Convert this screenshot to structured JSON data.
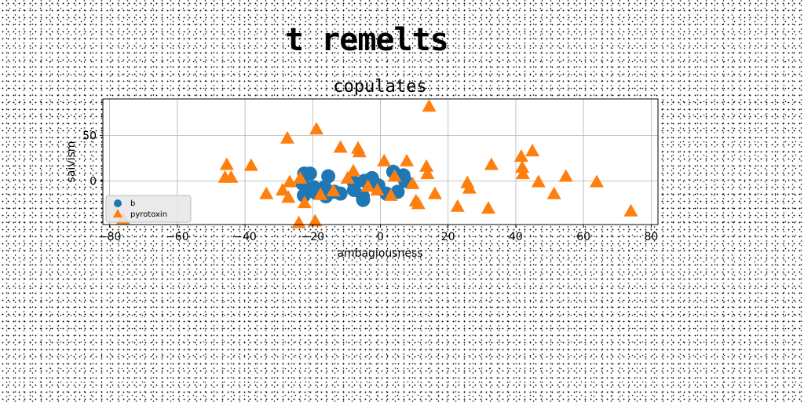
{
  "figure": {
    "suptitle": "t remelts"
  },
  "chart_data": {
    "type": "scatter",
    "title": "copulates",
    "xlabel": "ambagiousness",
    "ylabel": "saivism",
    "xlim": [
      -82,
      82
    ],
    "ylim": [
      -48,
      90
    ],
    "grid": true,
    "legend_position": "lower-left",
    "xticks": [
      -80,
      -60,
      -40,
      -20,
      0,
      20,
      40,
      60,
      80
    ],
    "yticks": [
      0,
      50
    ],
    "series": [
      {
        "name": "b",
        "marker": "circle",
        "color": "#1f77b4",
        "points": [
          [
            -22.5,
            8
          ],
          [
            -20.8,
            8
          ],
          [
            -15.4,
            5
          ],
          [
            -23,
            -3
          ],
          [
            -19.7,
            -7
          ],
          [
            -16.5,
            -7
          ],
          [
            -13.6,
            -12
          ],
          [
            -22.6,
            -16
          ],
          [
            -19.1,
            -13
          ],
          [
            -11.8,
            -14
          ],
          [
            -7.8,
            -10
          ],
          [
            -7.8,
            -2
          ],
          [
            -4.7,
            0
          ],
          [
            -2.5,
            3
          ],
          [
            -1.8,
            -4
          ],
          [
            -0.6,
            -5
          ],
          [
            3.8,
            10
          ],
          [
            6.8,
            6
          ],
          [
            7.3,
            0
          ],
          [
            1.8,
            -14
          ],
          [
            -5.1,
            -21
          ],
          [
            -5.2,
            -17
          ],
          [
            5.1,
            -12
          ],
          [
            -16.1,
            -17
          ]
        ]
      },
      {
        "name": "pyrotoxin",
        "marker": "triangle",
        "color": "#ff7f0e",
        "points": [
          [
            -45.4,
            18
          ],
          [
            -45.9,
            4
          ],
          [
            -44.1,
            4
          ],
          [
            -38.2,
            17
          ],
          [
            -33.7,
            -14
          ],
          [
            -28.9,
            -10
          ],
          [
            -27.5,
            47
          ],
          [
            -26.8,
            -1
          ],
          [
            -27.2,
            -18
          ],
          [
            -23.7,
            3
          ],
          [
            -24.1,
            -46
          ],
          [
            -22.4,
            -24
          ],
          [
            -18.9,
            57
          ],
          [
            -19.3,
            -44
          ],
          [
            -17.7,
            -15
          ],
          [
            -13.9,
            -11
          ],
          [
            -11.8,
            37
          ],
          [
            -9.7,
            3
          ],
          [
            -8,
            11
          ],
          [
            -6.6,
            36
          ],
          [
            -6.2,
            32
          ],
          [
            -3.7,
            -6
          ],
          [
            -0.9,
            -10
          ],
          [
            1.1,
            22
          ],
          [
            3.1,
            -16
          ],
          [
            4.2,
            5
          ],
          [
            7.8,
            22
          ],
          [
            9.5,
            -3
          ],
          [
            10.5,
            -22
          ],
          [
            11.2,
            -25
          ],
          [
            13.6,
            16
          ],
          [
            13.9,
            8
          ],
          [
            14.4,
            82
          ],
          [
            16.1,
            -14
          ],
          [
            22.8,
            -28
          ],
          [
            25.7,
            -2
          ],
          [
            26.3,
            -8
          ],
          [
            31.9,
            -30
          ],
          [
            32.8,
            18
          ],
          [
            41.6,
            27
          ],
          [
            41.9,
            15
          ],
          [
            42.1,
            8
          ],
          [
            44.9,
            33
          ],
          [
            46.7,
            -1
          ],
          [
            51.3,
            -14
          ],
          [
            54.8,
            5
          ],
          [
            63.9,
            -1
          ],
          [
            74,
            -33
          ],
          [
            -76,
            -42
          ]
        ]
      }
    ]
  }
}
